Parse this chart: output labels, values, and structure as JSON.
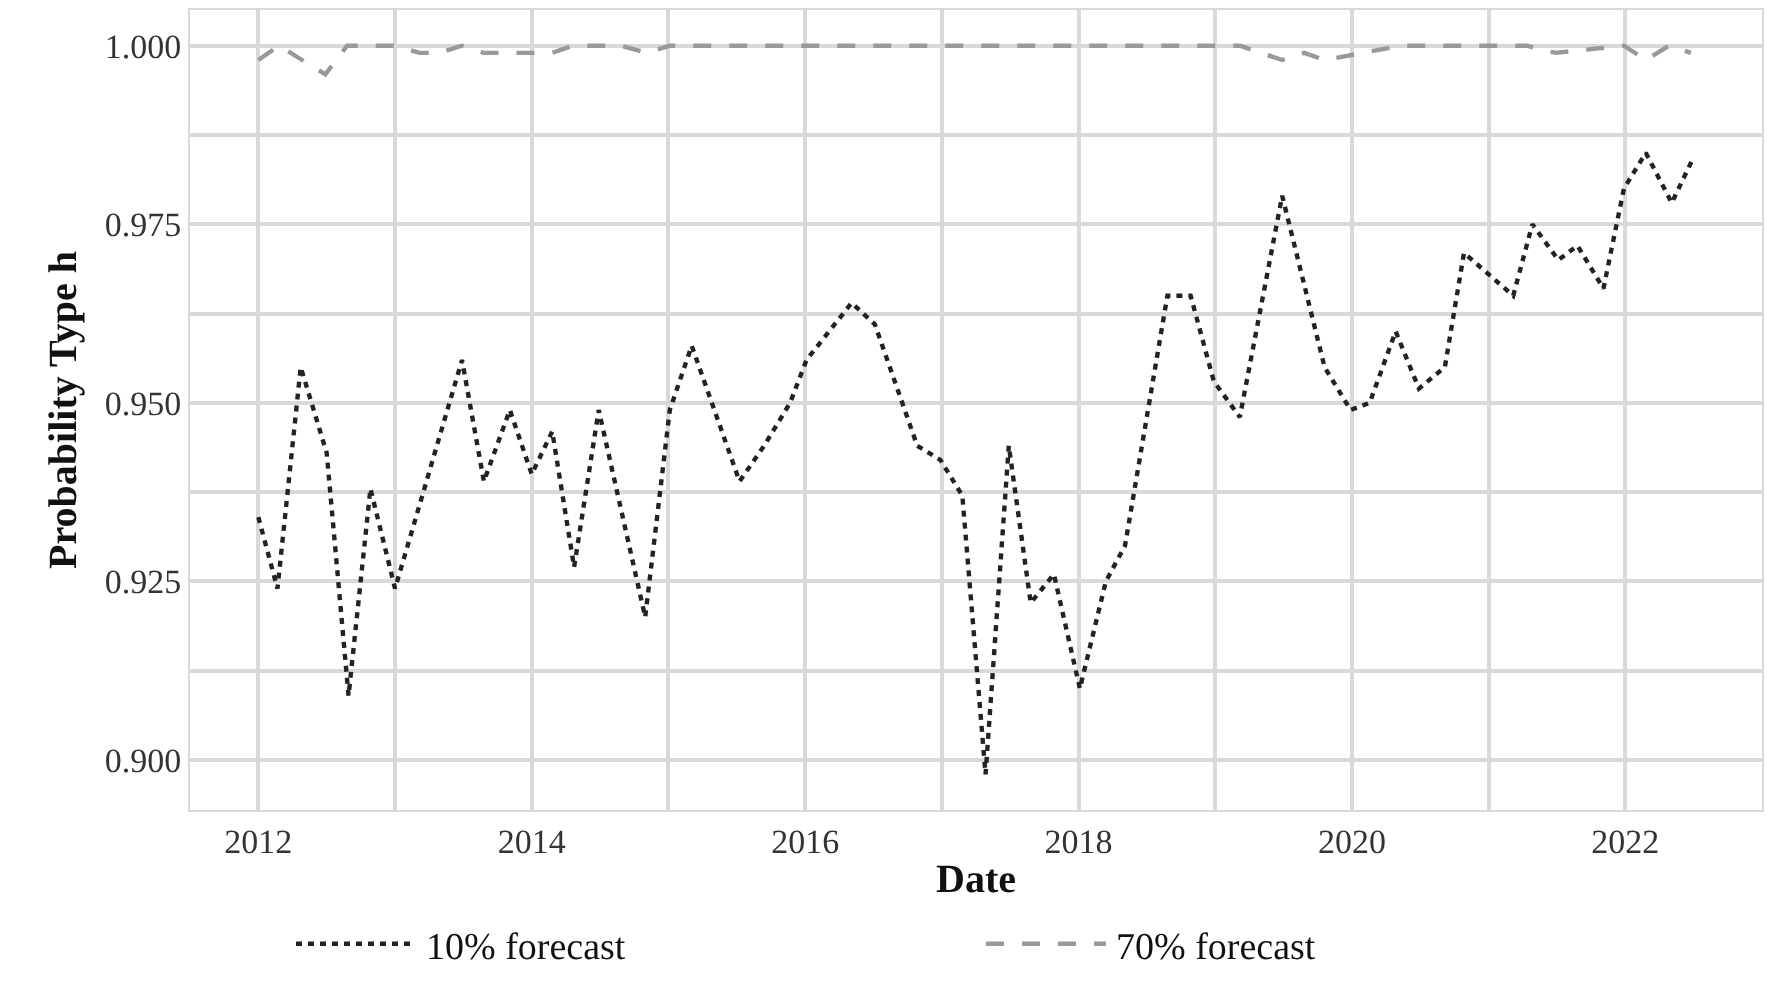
{
  "chart_data": {
    "type": "line",
    "xlabel": "Date",
    "ylabel": "Probability Type h",
    "series": [
      {
        "name": "10% forecast",
        "color": "#222222",
        "line_style": "dotted",
        "x": [
          2012.0,
          2012.14,
          2012.31,
          2012.5,
          2012.66,
          2012.82,
          2013.0,
          2013.49,
          2013.65,
          2013.84,
          2014.0,
          2014.15,
          2014.31,
          2014.49,
          2014.83,
          2015.01,
          2015.17,
          2015.52,
          2015.7,
          2015.89,
          2016.01,
          2016.34,
          2016.51,
          2016.82,
          2016.99,
          2017.15,
          2017.32,
          2017.49,
          2017.65,
          2017.82,
          2018.01,
          2018.2,
          2018.34,
          2018.65,
          2018.82,
          2018.99,
          2019.18,
          2019.49,
          2019.8,
          2019.99,
          2020.13,
          2020.32,
          2020.49,
          2020.68,
          2020.82,
          2021.18,
          2021.32,
          2021.51,
          2021.65,
          2021.84,
          2021.99,
          2022.15,
          2022.34,
          2022.49
        ],
        "values": [
          0.934,
          0.924,
          0.955,
          0.943,
          0.909,
          0.938,
          0.924,
          0.956,
          0.939,
          0.949,
          0.94,
          0.946,
          0.927,
          0.949,
          0.92,
          0.949,
          0.958,
          0.939,
          0.944,
          0.95,
          0.956,
          0.964,
          0.961,
          0.944,
          0.942,
          0.937,
          0.898,
          0.944,
          0.922,
          0.926,
          0.91,
          0.925,
          0.93,
          0.965,
          0.965,
          0.953,
          0.948,
          0.979,
          0.955,
          0.949,
          0.95,
          0.96,
          0.952,
          0.955,
          0.971,
          0.965,
          0.975,
          0.97,
          0.972,
          0.966,
          0.98,
          0.985,
          0.978,
          0.984
        ]
      },
      {
        "name": "70% forecast",
        "color": "#999999",
        "line_style": "dashed",
        "x": [
          2012.0,
          2012.15,
          2012.32,
          2012.49,
          2012.65,
          2012.99,
          2013.18,
          2013.32,
          2013.49,
          2013.65,
          2013.99,
          2014.15,
          2014.3,
          2014.65,
          2014.84,
          2015.01,
          2015.84,
          2018.8,
          2018.99,
          2019.18,
          2019.49,
          2019.65,
          2019.8,
          2020.36,
          2021.28,
          2021.49,
          2021.99,
          2022.15,
          2022.32,
          2022.48
        ],
        "values": [
          0.998,
          1.0,
          0.998,
          0.996,
          1.0,
          1.0,
          0.999,
          0.999,
          1.0,
          0.999,
          0.999,
          0.999,
          1.0,
          1.0,
          0.999,
          1.0,
          1.0,
          1.0,
          1.0,
          1.0,
          0.998,
          0.999,
          0.998,
          1.0,
          1.0,
          0.999,
          1.0,
          0.998,
          1.0,
          0.999
        ]
      }
    ],
    "xlim": [
      2011.5,
      2023.0
    ],
    "xticks": [
      2012,
      {
        "value": 2013,
        "label": null
      },
      2014,
      {
        "value": 2015,
        "label": null
      },
      2016,
      {
        "value": 2017,
        "label": null
      },
      2018,
      {
        "value": 2019,
        "label": null
      },
      2020,
      {
        "value": 2021,
        "label": null
      },
      2022
    ],
    "ylim": [
      0.893,
      1.005
    ],
    "yticks": [
      {
        "value": 0.9,
        "label": "0.900"
      },
      {
        "value": 0.9125,
        "label": null
      },
      0.925,
      {
        "value": 0.9375,
        "label": null
      },
      {
        "value": 0.95,
        "label": "0.950"
      },
      {
        "value": 0.9625,
        "label": null
      },
      0.975,
      {
        "value": 0.9875,
        "label": null
      },
      {
        "value": 1.0,
        "label": "1.000"
      }
    ],
    "grid": true,
    "legend": "bottom",
    "marker": "none"
  }
}
